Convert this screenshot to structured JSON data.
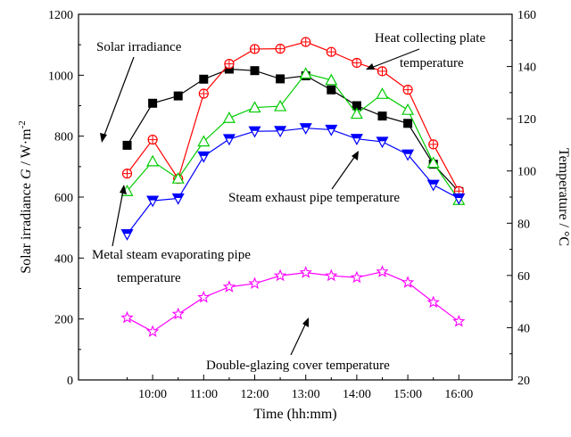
{
  "chart_data": {
    "type": "line",
    "x": [
      "9:30",
      "10:00",
      "10:30",
      "11:00",
      "11:30",
      "12:00",
      "12:30",
      "13:00",
      "13:30",
      "14:00",
      "14:30",
      "15:00",
      "15:30",
      "16:00"
    ],
    "x_tick_labels": [
      "10:00",
      "11:00",
      "12:00",
      "13:00",
      "14:00",
      "15:00",
      "16:00"
    ],
    "xlabel": "Time (hh:mm)",
    "ylabel_left_prefix": "Solar irradiance ",
    "ylabel_left_var": "G",
    "ylabel_left_unit": " / W·m",
    "ylabel_left_exp": "-2",
    "ylabel_right": "Temperature / °C",
    "ylim_left": [
      0,
      1200
    ],
    "ylim_right": [
      20,
      160
    ],
    "yticks_left": [
      0,
      200,
      400,
      600,
      800,
      1000,
      1200
    ],
    "yticks_right": [
      20,
      40,
      60,
      80,
      100,
      120,
      140,
      160
    ],
    "series": [
      {
        "name": "Solar irradiance",
        "axis": "left",
        "color": "#000000",
        "marker": "square",
        "values": [
          770,
          908,
          932,
          987,
          1020,
          1015,
          988,
          998,
          952,
          900,
          866,
          842,
          708,
          618
        ]
      },
      {
        "name": "Heat collecting plate temperature",
        "axis": "right",
        "color": "#ff0000",
        "marker": "circle-plus",
        "values": [
          99,
          112,
          97,
          129.6,
          141,
          146.7,
          146.8,
          149.4,
          145.6,
          141.4,
          138.2,
          131.1,
          110.2,
          92.3
        ]
      },
      {
        "name": "Metal steam evaporating pipe temperature",
        "axis": "right",
        "color": "#00cc00",
        "marker": "triangle-up",
        "values": [
          92.3,
          103.7,
          97.1,
          111.3,
          120.3,
          124.3,
          124.8,
          137.3,
          134.8,
          121.9,
          129.5,
          123.4,
          103.1,
          88.9
        ]
      },
      {
        "name": "Steam exhaust pipe temperature",
        "axis": "right",
        "color": "#0000ff",
        "marker": "triangle-down",
        "values": [
          75.8,
          88.6,
          89.5,
          105.6,
          112.2,
          115.2,
          115.3,
          116.4,
          115.8,
          112.3,
          111.2,
          106.3,
          94.7,
          89.5
        ]
      },
      {
        "name": "Double-glazing cover temperature",
        "axis": "right",
        "color": "#ff00ff",
        "marker": "star",
        "values": [
          43.8,
          38.5,
          45.2,
          51.6,
          55.6,
          56.9,
          59.9,
          61.1,
          59.9,
          59.2,
          61.4,
          57.3,
          49.7,
          42.4
        ]
      }
    ],
    "annotations": [
      "Solar irradiance",
      "Heat collecting plate",
      "temperature",
      "Steam exhaust pipe temperature",
      "Metal steam evaporating pipe",
      "temperature",
      "Double-glazing cover temperature"
    ],
    "grid": false,
    "legend": "none"
  }
}
